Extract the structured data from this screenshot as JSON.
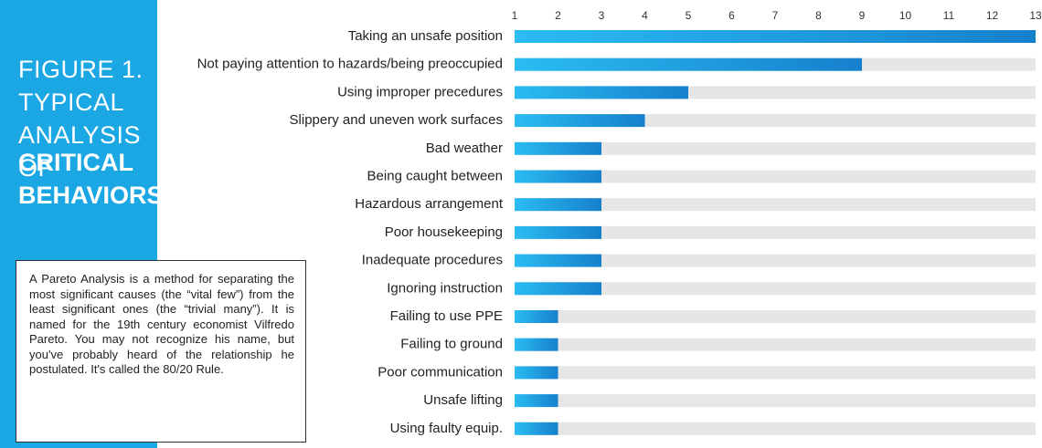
{
  "chart_data": {
    "type": "bar",
    "orientation": "horizontal",
    "title": "FIGURE 1. TYPICAL ANALYSIS OF",
    "subtitle": "CRITICAL BEHAVIORS",
    "note": "A Pareto Analysis is a method for separating the most significant causes (the “vital few”) from the least significant ones (the “trivial many”). It is named for the 19th century economist Vilfredo Pareto. You may not recognize his name, but you've probably heard of the relationship he postulated. It's called the 80/20 Rule.",
    "categories": [
      "Taking an unsafe position",
      "Not paying attention to hazards/being preoccupied",
      "Using improper precedures",
      "Slippery and uneven work surfaces",
      "Bad weather",
      "Being caught between",
      "Hazardous arrangement",
      "Poor housekeeping",
      "Inadequate procedures",
      "Ignoring instruction",
      "Failing to use PPE",
      "Failing to ground",
      "Poor communication",
      "Unsafe lifting",
      "Using faulty equip."
    ],
    "values": [
      13,
      9,
      5,
      4,
      3,
      3,
      3,
      3,
      3,
      3,
      2,
      2,
      2,
      2,
      2
    ],
    "color": "#1a8fd6",
    "xlim": [
      1,
      13
    ],
    "xticks": [
      1,
      2,
      3,
      4,
      5,
      6,
      7,
      8,
      9,
      10,
      11,
      12,
      13
    ]
  }
}
